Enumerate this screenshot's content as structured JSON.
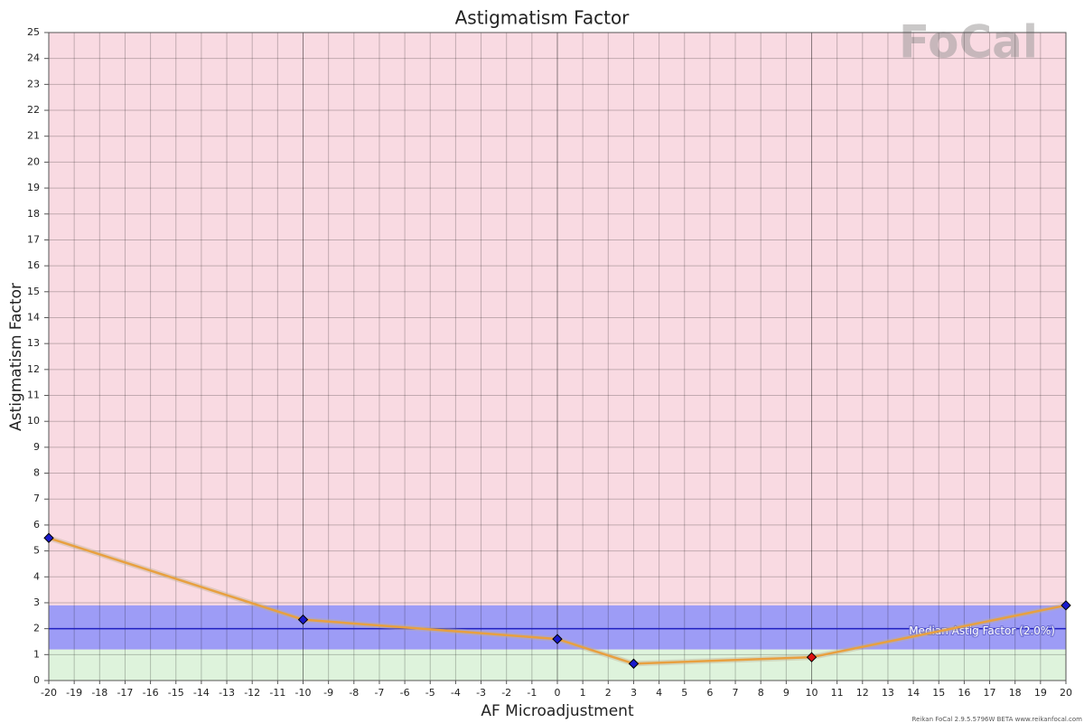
{
  "chart_data": {
    "type": "line",
    "title": "Astigmatism Factor",
    "x_label": "AF Microadjustment",
    "y_label": "Astigmatism Factor",
    "x": [
      -20,
      -10,
      0,
      3,
      10,
      20
    ],
    "series": [
      {
        "name": "Astigmatism Factor",
        "color": "#e8a040",
        "values": [
          5.5,
          2.35,
          1.6,
          0.65,
          0.9,
          2.9
        ],
        "marker_colors": [
          "#1a1acc",
          "#1a1acc",
          "#1a1acc",
          "#1a1acc",
          "#dd1111",
          "#1a1acc"
        ]
      }
    ],
    "xlim": [
      -20,
      20
    ],
    "ylim": [
      0,
      25
    ],
    "xticks": [
      -20,
      -19,
      -18,
      -17,
      -16,
      -15,
      -14,
      -13,
      -12,
      -11,
      -10,
      -9,
      -8,
      -7,
      -6,
      -5,
      -4,
      -3,
      -2,
      -1,
      0,
      1,
      2,
      3,
      4,
      5,
      6,
      7,
      8,
      9,
      10,
      11,
      12,
      13,
      14,
      15,
      16,
      17,
      18,
      19,
      20
    ],
    "major_xticks": [
      -10,
      0,
      10
    ],
    "yticks": [
      0,
      1,
      2,
      3,
      4,
      5,
      6,
      7,
      8,
      9,
      10,
      11,
      12,
      13,
      14,
      15,
      16,
      17,
      18,
      19,
      20,
      21,
      22,
      23,
      24,
      25
    ],
    "grid": true,
    "background_color": "#f9dae2",
    "bands": [
      {
        "from": 0,
        "to": 1.2,
        "color": "#def3dc"
      },
      {
        "from": 1.2,
        "to": 2.9,
        "color": "#9d9cf6"
      }
    ],
    "median": {
      "value": 2.0,
      "label": "Median Astig Factor (2.0%)",
      "color": "#2020c0"
    },
    "logo": "FoCal",
    "footer": "Reikan FoCal 2.9.5.5796W BETA www.reikanfocal.com"
  }
}
